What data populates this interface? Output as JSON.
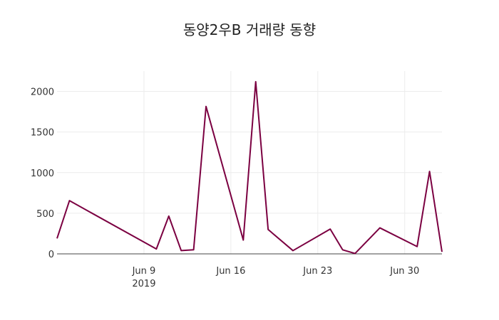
{
  "chart_data": {
    "type": "line",
    "title": "동양2우B 거래량 동향",
    "xlabel": "",
    "ylabel": "",
    "x": [
      "2019-06-02",
      "2019-06-03",
      "2019-06-10",
      "2019-06-11",
      "2019-06-12",
      "2019-06-13",
      "2019-06-14",
      "2019-06-17",
      "2019-06-18",
      "2019-06-19",
      "2019-06-21",
      "2019-06-24",
      "2019-06-25",
      "2019-06-26",
      "2019-06-28",
      "2019-07-01",
      "2019-07-02",
      "2019-07-03"
    ],
    "series": [
      {
        "values": [
          190,
          655,
          60,
          465,
          40,
          50,
          1815,
          170,
          2120,
          300,
          40,
          305,
          50,
          5,
          320,
          90,
          1015,
          25
        ],
        "color": "#7b0041"
      }
    ],
    "xlim": [
      "2019-06-02",
      "2019-07-03"
    ],
    "ylim": [
      0,
      2250
    ],
    "x_ticks": [
      {
        "date": "2019-06-09",
        "label": "Jun 9",
        "sublabel": "2019"
      },
      {
        "date": "2019-06-16",
        "label": "Jun 16",
        "sublabel": ""
      },
      {
        "date": "2019-06-23",
        "label": "Jun 23",
        "sublabel": ""
      },
      {
        "date": "2019-06-30",
        "label": "Jun 30",
        "sublabel": ""
      }
    ],
    "y_ticks": [
      {
        "value": 0,
        "label": "0"
      },
      {
        "value": 500,
        "label": "500"
      },
      {
        "value": 1000,
        "label": "1000"
      },
      {
        "value": 1500,
        "label": "1500"
      },
      {
        "value": 2000,
        "label": "2000"
      }
    ],
    "grid": true,
    "legend": false
  },
  "colors": {
    "line": "#7b0041",
    "grid": "#ececec",
    "axis": "#444444",
    "background": "#ffffff"
  }
}
